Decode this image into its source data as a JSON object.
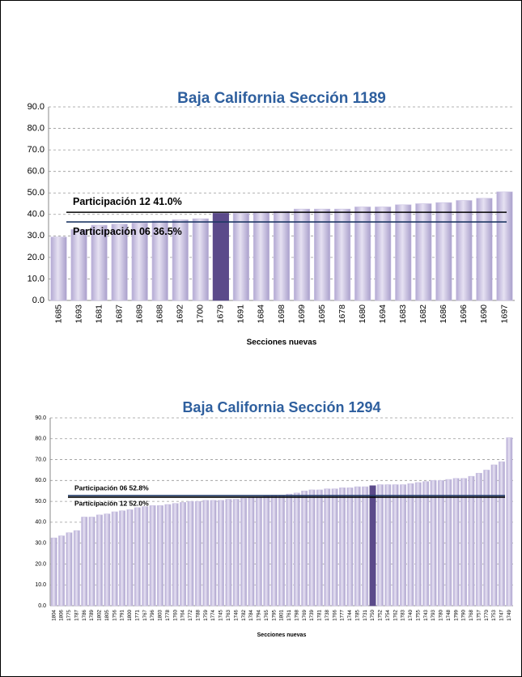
{
  "chart_data": [
    {
      "type": "bar",
      "title": "Baja California  Sección 1189",
      "x_label": "Secciones nuevas",
      "categories": [
        "1685",
        "1693",
        "1681",
        "1687",
        "1689",
        "1688",
        "1692",
        "1700",
        "1679",
        "1691",
        "1684",
        "1698",
        "1699",
        "1695",
        "1678",
        "1680",
        "1694",
        "1683",
        "1682",
        "1686",
        "1696",
        "1690",
        "1697"
      ],
      "values": [
        29.5,
        33,
        35,
        35.5,
        36,
        37,
        37.5,
        38,
        40.5,
        40.5,
        41,
        41.5,
        42.5,
        42.5,
        42.5,
        43.5,
        43.5,
        44.5,
        45,
        45.5,
        46.5,
        47.5,
        50.5
      ],
      "color": "#cbc3e3",
      "highlight": {
        "index": 8,
        "color": "#5b4a8a"
      },
      "reference_lines": [
        {
          "label": "Participación 12   41.0%",
          "value": 41.0,
          "color": "#000000"
        },
        {
          "label": "Participación 06   36.5%",
          "value": 36.5,
          "color": "#1f3864"
        }
      ],
      "ylim": [
        0,
        90
      ],
      "yticks": [
        {
          "value": 0,
          "label": "0.0"
        },
        {
          "value": 10,
          "label": "10.0"
        },
        {
          "value": 20,
          "label": "20.0"
        },
        {
          "value": 30,
          "label": "30.0"
        },
        {
          "value": 40,
          "label": "40.0"
        },
        {
          "value": 50,
          "label": "50.0"
        },
        {
          "value": 60,
          "label": "60.0"
        },
        {
          "value": 70,
          "label": "70.0"
        },
        {
          "value": 80,
          "label": "80.0"
        },
        {
          "value": 90,
          "label": "90.0"
        }
      ],
      "grid": true
    },
    {
      "type": "bar",
      "title": "Baja California  Sección 1294",
      "x_label": "Secciones nuevas",
      "categories": [
        "1804",
        "1806",
        "1775",
        "1787",
        "1786",
        "1789",
        "1802",
        "1805",
        "1756",
        "1791",
        "1800",
        "1771",
        "1767",
        "1796",
        "1803",
        "1778",
        "1760",
        "1764",
        "1772",
        "1788",
        "1759",
        "1774",
        "1745",
        "1763",
        "1746",
        "1782",
        "1784",
        "1794",
        "1765",
        "1795",
        "1801",
        "1761",
        "1798",
        "1769",
        "1739",
        "1781",
        "1738",
        "1766",
        "1777",
        "1744",
        "1785",
        "1731",
        "1750",
        "1752",
        "1754",
        "1762",
        "1783",
        "1740",
        "1755",
        "1743",
        "1793",
        "1780",
        "1748",
        "1799",
        "1790",
        "1768",
        "1757",
        "1770",
        "1753",
        "1747",
        "1749"
      ],
      "values": [
        32.5,
        33.5,
        35,
        36,
        42.5,
        42.5,
        43.5,
        44,
        45,
        45.5,
        46,
        47,
        47.5,
        48,
        48,
        48.5,
        49,
        49.5,
        50,
        50,
        50.5,
        50.5,
        50.5,
        51,
        51,
        51.5,
        52,
        52,
        52.5,
        53,
        53,
        53.5,
        54,
        55,
        55.5,
        55.5,
        56,
        56,
        56.5,
        56.5,
        57,
        57,
        57.5,
        58,
        58,
        58,
        58,
        58.5,
        59,
        59.5,
        60,
        60,
        60.5,
        61,
        61,
        62,
        63.5,
        65,
        67.5,
        69,
        80.5
      ],
      "color": "#cbc3e3",
      "highlight": {
        "index": 42,
        "color": "#5b4a8a"
      },
      "reference_lines": [
        {
          "label": "Participación 06  52.8%",
          "value": 52.8,
          "color": "#1f3864"
        },
        {
          "label": "Participación 12  52.0%",
          "value": 52.0,
          "color": "#000000"
        }
      ],
      "ylim": [
        0,
        90
      ],
      "yticks": [
        {
          "value": 0,
          "label": "0.0"
        },
        {
          "value": 10,
          "label": "10.0"
        },
        {
          "value": 20,
          "label": "20.0"
        },
        {
          "value": 30,
          "label": "30.0"
        },
        {
          "value": 40,
          "label": "40.0"
        },
        {
          "value": 50,
          "label": "50.0"
        },
        {
          "value": 60,
          "label": "60.0"
        },
        {
          "value": 70,
          "label": "70.0"
        },
        {
          "value": 80,
          "label": "80.0"
        },
        {
          "value": 90,
          "label": "90.0"
        }
      ],
      "grid": true
    }
  ]
}
